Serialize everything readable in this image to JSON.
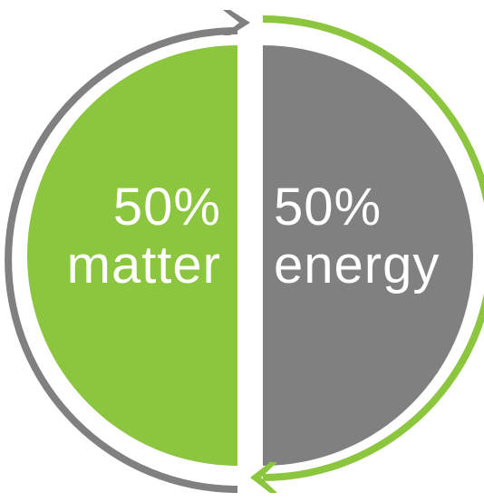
{
  "halves": {
    "left": {
      "percent": "50%",
      "label": "matter",
      "fill_color": "#8CC63F",
      "arc_color": "#808080"
    },
    "right": {
      "percent": "50%",
      "label": "energy",
      "fill_color": "#808080",
      "arc_color": "#8CC63F"
    }
  },
  "text_color": "#FFFFFF",
  "icons": [
    "cycle-arrow-top-icon",
    "cycle-arrow-bottom-icon"
  ]
}
